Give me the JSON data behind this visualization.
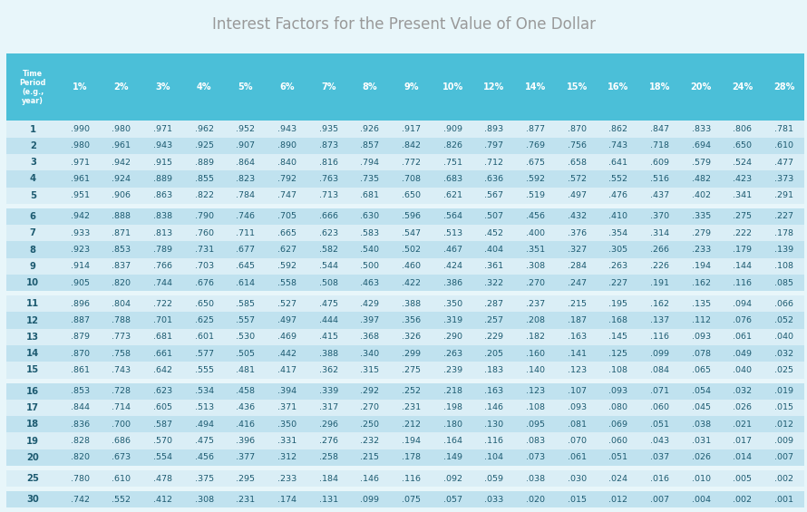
{
  "title": "Interest Factors for the Present Value of One Dollar",
  "header": [
    "Time\nPeriod\n(e.g.,\nyear)",
    "1%",
    "2%",
    "3%",
    "4%",
    "5%",
    "6%",
    "7%",
    "8%",
    "9%",
    "10%",
    "12%",
    "14%",
    "15%",
    "16%",
    "18%",
    "20%",
    "24%",
    "28%"
  ],
  "rows": [
    [
      "1",
      ".990",
      ".980",
      ".971",
      ".962",
      ".952",
      ".943",
      ".935",
      ".926",
      ".917",
      ".909",
      ".893",
      ".877",
      ".870",
      ".862",
      ".847",
      ".833",
      ".806",
      ".781"
    ],
    [
      "2",
      ".980",
      ".961",
      ".943",
      ".925",
      ".907",
      ".890",
      ".873",
      ".857",
      ".842",
      ".826",
      ".797",
      ".769",
      ".756",
      ".743",
      ".718",
      ".694",
      ".650",
      ".610"
    ],
    [
      "3",
      ".971",
      ".942",
      ".915",
      ".889",
      ".864",
      ".840",
      ".816",
      ".794",
      ".772",
      ".751",
      ".712",
      ".675",
      ".658",
      ".641",
      ".609",
      ".579",
      ".524",
      ".477"
    ],
    [
      "4",
      ".961",
      ".924",
      ".889",
      ".855",
      ".823",
      ".792",
      ".763",
      ".735",
      ".708",
      ".683",
      ".636",
      ".592",
      ".572",
      ".552",
      ".516",
      ".482",
      ".423",
      ".373"
    ],
    [
      "5",
      ".951",
      ".906",
      ".863",
      ".822",
      ".784",
      ".747",
      ".713",
      ".681",
      ".650",
      ".621",
      ".567",
      ".519",
      ".497",
      ".476",
      ".437",
      ".402",
      ".341",
      ".291"
    ],
    [
      "",
      "",
      "",
      "",
      "",
      "",
      "",
      "",
      "",
      "",
      "",
      "",
      "",
      "",
      "",
      "",
      "",
      "",
      ""
    ],
    [
      "6",
      ".942",
      ".888",
      ".838",
      ".790",
      ".746",
      ".705",
      ".666",
      ".630",
      ".596",
      ".564",
      ".507",
      ".456",
      ".432",
      ".410",
      ".370",
      ".335",
      ".275",
      ".227"
    ],
    [
      "7",
      ".933",
      ".871",
      ".813",
      ".760",
      ".711",
      ".665",
      ".623",
      ".583",
      ".547",
      ".513",
      ".452",
      ".400",
      ".376",
      ".354",
      ".314",
      ".279",
      ".222",
      ".178"
    ],
    [
      "8",
      ".923",
      ".853",
      ".789",
      ".731",
      ".677",
      ".627",
      ".582",
      ".540",
      ".502",
      ".467",
      ".404",
      ".351",
      ".327",
      ".305",
      ".266",
      ".233",
      ".179",
      ".139"
    ],
    [
      "9",
      ".914",
      ".837",
      ".766",
      ".703",
      ".645",
      ".592",
      ".544",
      ".500",
      ".460",
      ".424",
      ".361",
      ".308",
      ".284",
      ".263",
      ".226",
      ".194",
      ".144",
      ".108"
    ],
    [
      "10",
      ".905",
      ".820",
      ".744",
      ".676",
      ".614",
      ".558",
      ".508",
      ".463",
      ".422",
      ".386",
      ".322",
      ".270",
      ".247",
      ".227",
      ".191",
      ".162",
      ".116",
      ".085"
    ],
    [
      "",
      "",
      "",
      "",
      "",
      "",
      "",
      "",
      "",
      "",
      "",
      "",
      "",
      "",
      "",
      "",
      "",
      "",
      ""
    ],
    [
      "11",
      ".896",
      ".804",
      ".722",
      ".650",
      ".585",
      ".527",
      ".475",
      ".429",
      ".388",
      ".350",
      ".287",
      ".237",
      ".215",
      ".195",
      ".162",
      ".135",
      ".094",
      ".066"
    ],
    [
      "12",
      ".887",
      ".788",
      ".701",
      ".625",
      ".557",
      ".497",
      ".444",
      ".397",
      ".356",
      ".319",
      ".257",
      ".208",
      ".187",
      ".168",
      ".137",
      ".112",
      ".076",
      ".052"
    ],
    [
      "13",
      ".879",
      ".773",
      ".681",
      ".601",
      ".530",
      ".469",
      ".415",
      ".368",
      ".326",
      ".290",
      ".229",
      ".182",
      ".163",
      ".145",
      ".116",
      ".093",
      ".061",
      ".040"
    ],
    [
      "14",
      ".870",
      ".758",
      ".661",
      ".577",
      ".505",
      ".442",
      ".388",
      ".340",
      ".299",
      ".263",
      ".205",
      ".160",
      ".141",
      ".125",
      ".099",
      ".078",
      ".049",
      ".032"
    ],
    [
      "15",
      ".861",
      ".743",
      ".642",
      ".555",
      ".481",
      ".417",
      ".362",
      ".315",
      ".275",
      ".239",
      ".183",
      ".140",
      ".123",
      ".108",
      ".084",
      ".065",
      ".040",
      ".025"
    ],
    [
      "",
      "",
      "",
      "",
      "",
      "",
      "",
      "",
      "",
      "",
      "",
      "",
      "",
      "",
      "",
      "",
      "",
      "",
      ""
    ],
    [
      "16",
      ".853",
      ".728",
      ".623",
      ".534",
      ".458",
      ".394",
      ".339",
      ".292",
      ".252",
      ".218",
      ".163",
      ".123",
      ".107",
      ".093",
      ".071",
      ".054",
      ".032",
      ".019"
    ],
    [
      "17",
      ".844",
      ".714",
      ".605",
      ".513",
      ".436",
      ".371",
      ".317",
      ".270",
      ".231",
      ".198",
      ".146",
      ".108",
      ".093",
      ".080",
      ".060",
      ".045",
      ".026",
      ".015"
    ],
    [
      "18",
      ".836",
      ".700",
      ".587",
      ".494",
      ".416",
      ".350",
      ".296",
      ".250",
      ".212",
      ".180",
      ".130",
      ".095",
      ".081",
      ".069",
      ".051",
      ".038",
      ".021",
      ".012"
    ],
    [
      "19",
      ".828",
      ".686",
      ".570",
      ".475",
      ".396",
      ".331",
      ".276",
      ".232",
      ".194",
      ".164",
      ".116",
      ".083",
      ".070",
      ".060",
      ".043",
      ".031",
      ".017",
      ".009"
    ],
    [
      "20",
      ".820",
      ".673",
      ".554",
      ".456",
      ".377",
      ".312",
      ".258",
      ".215",
      ".178",
      ".149",
      ".104",
      ".073",
      ".061",
      ".051",
      ".037",
      ".026",
      ".014",
      ".007"
    ],
    [
      "",
      "",
      "",
      "",
      "",
      "",
      "",
      "",
      "",
      "",
      "",
      "",
      "",
      "",
      "",
      "",
      "",
      "",
      ""
    ],
    [
      "25",
      ".780",
      ".610",
      ".478",
      ".375",
      ".295",
      ".233",
      ".184",
      ".146",
      ".116",
      ".092",
      ".059",
      ".038",
      ".030",
      ".024",
      ".016",
      ".010",
      ".005",
      ".002"
    ],
    [
      "",
      "",
      "",
      "",
      "",
      "",
      "",
      "",
      "",
      "",
      "",
      "",
      "",
      "",
      "",
      "",
      "",
      "",
      ""
    ],
    [
      "30",
      ".742",
      ".552",
      ".412",
      ".308",
      ".231",
      ".174",
      ".131",
      ".099",
      ".075",
      ".057",
      ".033",
      ".020",
      ".015",
      ".012",
      ".007",
      ".004",
      ".002",
      ".001"
    ]
  ],
  "header_bg": "#4BBFD8",
  "header_text": "#FFFFFF",
  "row_bg_light": "#DAEEF6",
  "row_bg_dark": "#C0E2EF",
  "row_text": "#1C5A70",
  "separator_bg": "#E8F6FA",
  "title_color": "#999999",
  "background_color": "#E8F6FA",
  "separator_rows": [
    5,
    11,
    17,
    23,
    25
  ],
  "col_widths_raw": [
    1.15,
    0.9,
    0.9,
    0.9,
    0.9,
    0.9,
    0.9,
    0.9,
    0.9,
    0.9,
    0.9,
    0.9,
    0.9,
    0.9,
    0.9,
    0.9,
    0.9,
    0.9,
    0.9
  ]
}
